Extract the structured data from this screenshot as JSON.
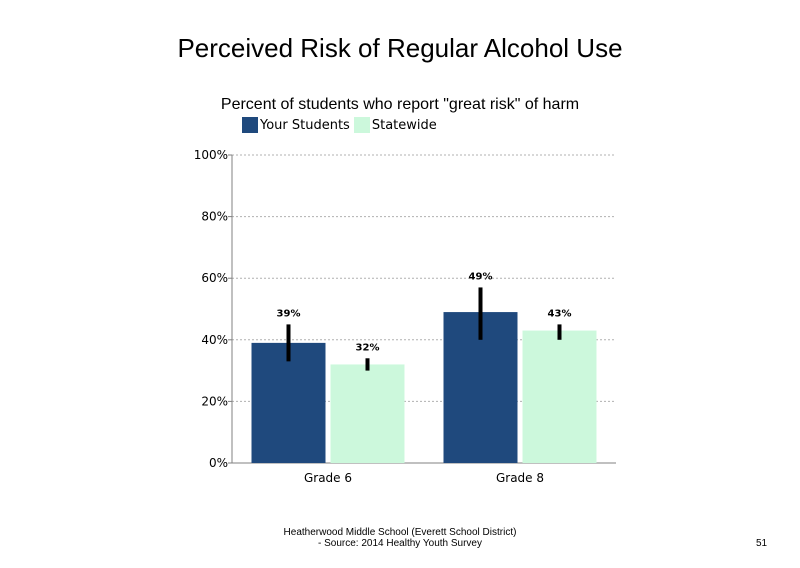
{
  "chart_data": {
    "type": "bar",
    "title": "Perceived Risk of Regular Alcohol Use",
    "subtitle": "Percent of students who report \"great risk\" of harm",
    "categories": [
      "Grade 6",
      "Grade 8"
    ],
    "series": [
      {
        "name": "Your Students",
        "color": "#1f497d",
        "values": [
          39,
          49
        ],
        "labels": [
          "39%",
          "49%"
        ],
        "error_low": [
          33,
          40
        ],
        "error_high": [
          45,
          57
        ]
      },
      {
        "name": "Statewide",
        "color": "#ccf8dc",
        "values": [
          32,
          43
        ],
        "labels": [
          "32%",
          "43%"
        ],
        "error_low": [
          30,
          40
        ],
        "error_high": [
          34,
          45
        ]
      }
    ],
    "ylim": [
      0,
      100
    ],
    "yticks": [
      0,
      20,
      40,
      60,
      80,
      100
    ],
    "ytick_labels": [
      "0%",
      "20%",
      "40%",
      "60%",
      "80%",
      "100%"
    ],
    "grid": true,
    "legend_position": "top-left"
  },
  "footer": {
    "line1": "Heatherwood Middle School (Everett School District)",
    "line2": "- Source: 2014 Healthy  Youth Survey"
  },
  "page_number": "51"
}
